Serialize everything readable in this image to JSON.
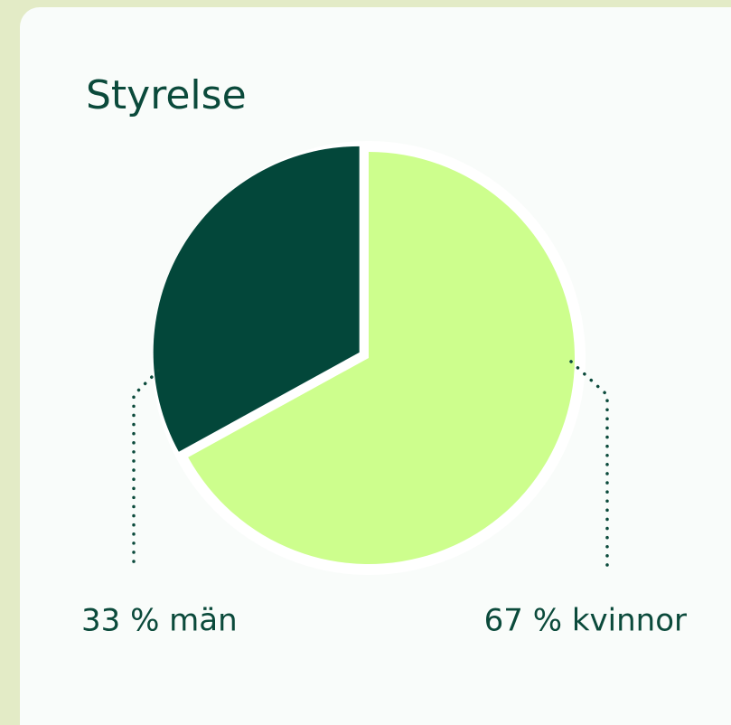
{
  "chart_data": {
    "type": "pie",
    "title": "Styrelse",
    "values": [
      33,
      67
    ],
    "value_labels": [
      "33 % män",
      "67 % kvinnor"
    ],
    "colors": [
      "#03473a",
      "#cdfe8d"
    ]
  }
}
